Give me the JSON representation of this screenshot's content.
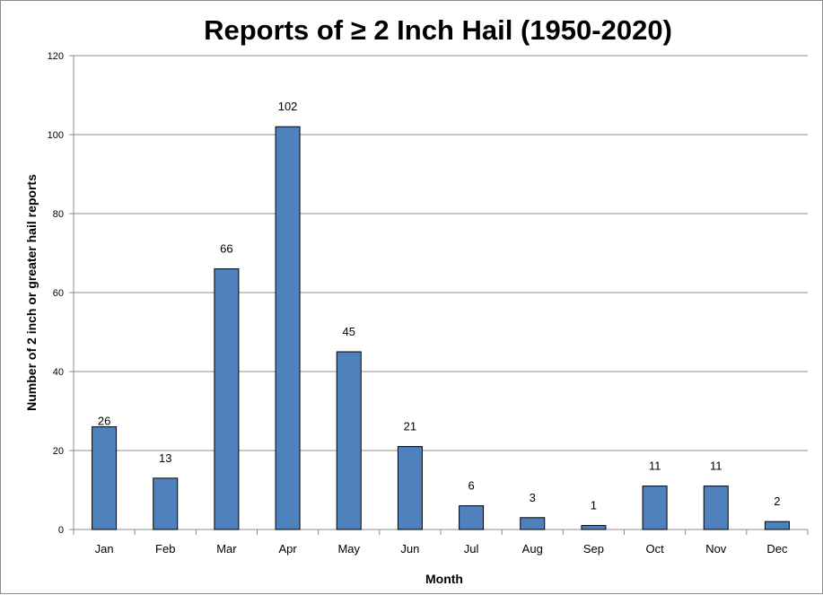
{
  "chart_data": {
    "type": "bar",
    "title": "Reports of ≥ 2 Inch Hail (1950-2020)",
    "xlabel": "Month",
    "ylabel": "Number of 2 inch or greater hail reports",
    "categories": [
      "Jan",
      "Feb",
      "Mar",
      "Apr",
      "May",
      "Jun",
      "Jul",
      "Aug",
      "Sep",
      "Oct",
      "Nov",
      "Dec"
    ],
    "values": [
      26,
      13,
      66,
      102,
      45,
      21,
      6,
      3,
      1,
      11,
      11,
      2
    ],
    "data_labels": [
      "26",
      "13",
      "66",
      "102",
      "45",
      "21",
      "6",
      "3",
      "1",
      "11",
      "11",
      "2"
    ],
    "ylim": [
      0,
      120
    ],
    "yticks": [
      0,
      20,
      40,
      60,
      80,
      100,
      120
    ],
    "grid": true,
    "legend": "none",
    "bar_color": "#4f81bd",
    "bar_edge_color": "#000000",
    "grid_color": "#8c8c8c"
  }
}
